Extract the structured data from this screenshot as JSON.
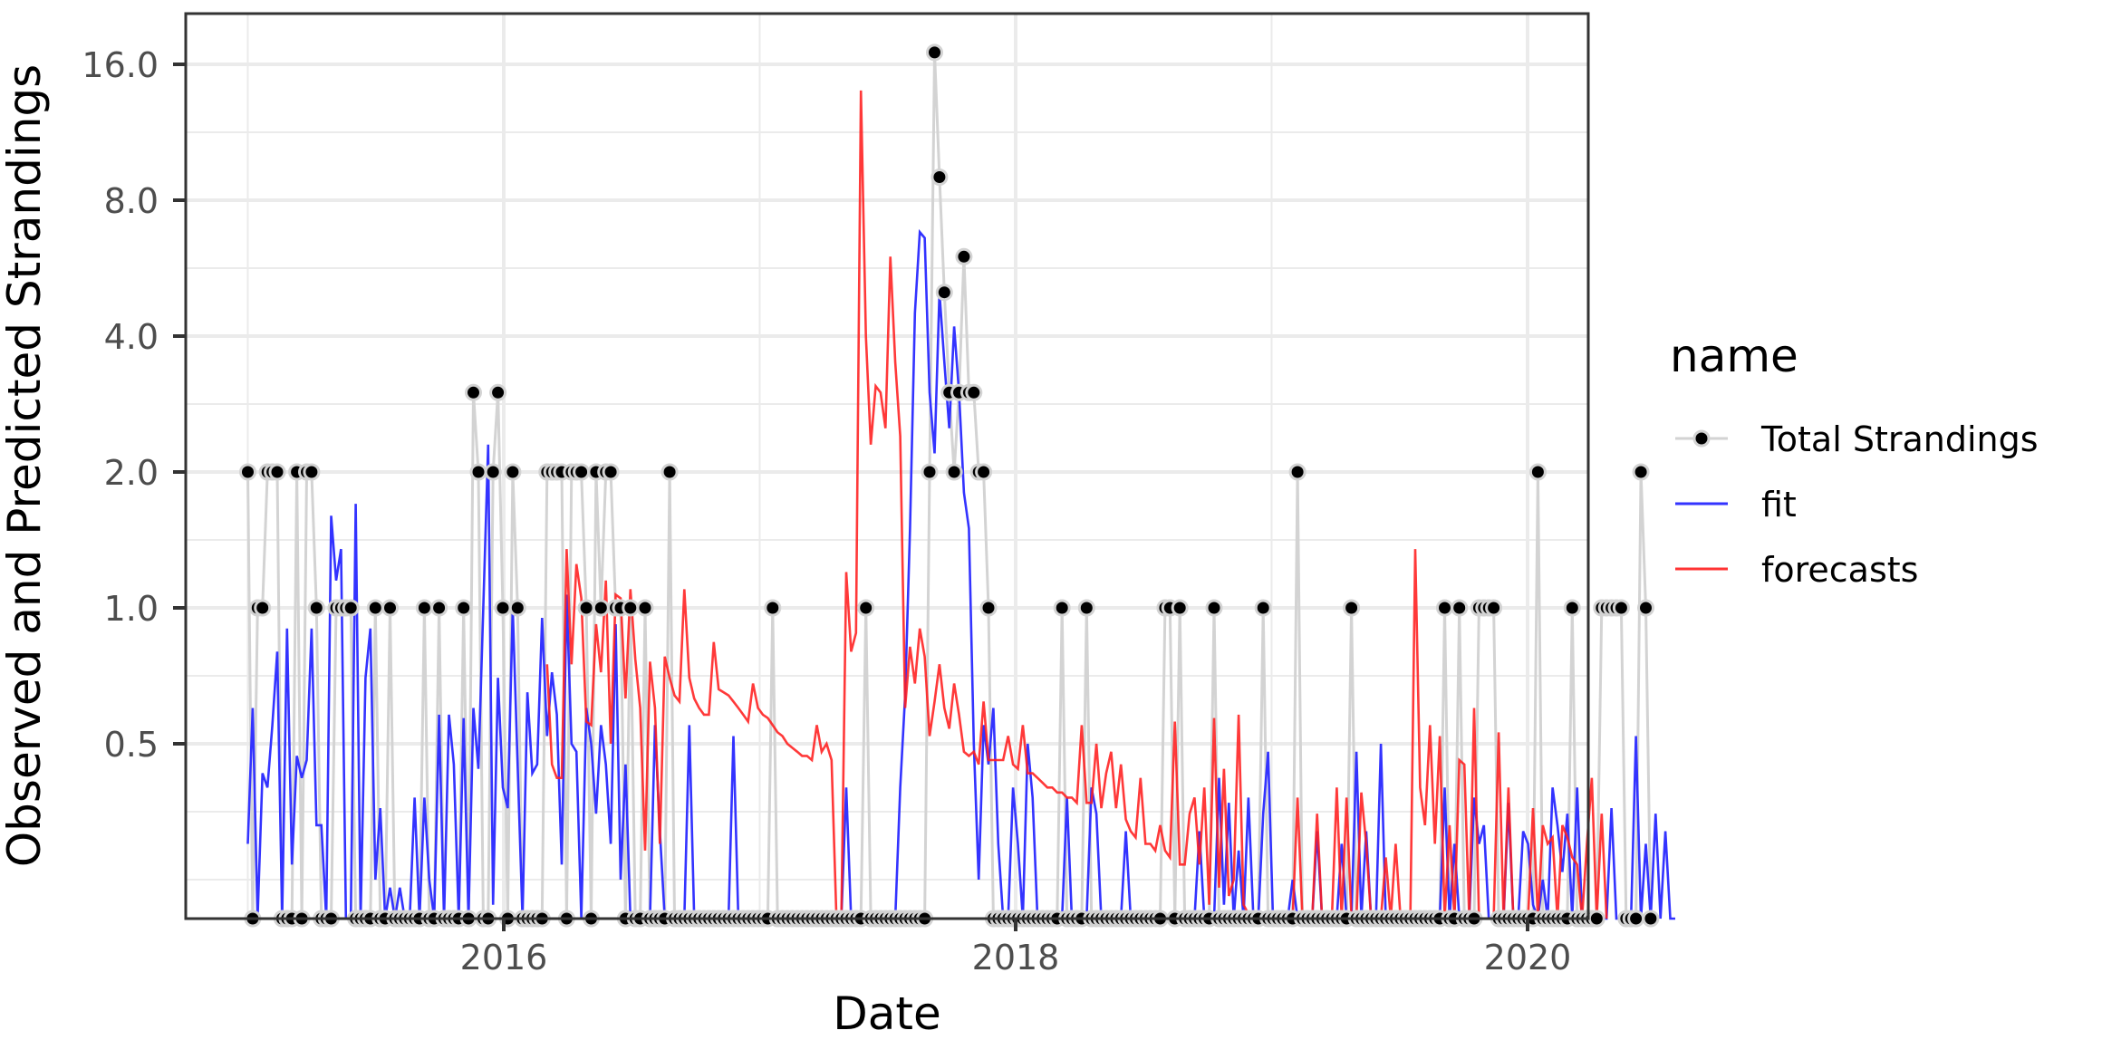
{
  "chart_data": {
    "type": "line",
    "title": "",
    "xlabel": "Date",
    "ylabel": "Observed and Predicted Strandings",
    "x_axis": {
      "type": "date",
      "range": [
        "2014-11-20",
        "2020-02-10"
      ],
      "ticks": [
        2016,
        2018,
        2020
      ],
      "tick_labels": [
        "2016",
        "2018",
        "2020"
      ]
    },
    "y_axis": {
      "scale": "log2",
      "ticks": [
        0.5,
        1.0,
        2.0,
        4.0,
        8.0,
        16.0
      ],
      "tick_labels": [
        "0.5",
        "1.0",
        "2.0",
        "4.0",
        "8.0",
        "16.0"
      ],
      "zero_values_drawn_at_panel_bottom": true
    },
    "grid": true,
    "legend": {
      "title": "name",
      "position": "right",
      "entries": [
        {
          "label": "Total Strandings",
          "style": "line+point",
          "line_color": "#d3d3d3",
          "point_color": "#000000"
        },
        {
          "label": "fit",
          "style": "line",
          "color": "#3333ff"
        },
        {
          "label": "forecasts",
          "style": "line",
          "color": "#ff3333"
        }
      ]
    },
    "frequency": "weekly",
    "start": "2015-01-01",
    "series": [
      {
        "name": "Total Strandings",
        "start_week": 0,
        "values": [
          2,
          0,
          1,
          1,
          2,
          2,
          2,
          0,
          0,
          0,
          2,
          0,
          2,
          2,
          1,
          0,
          0,
          0,
          1,
          1,
          1,
          1,
          0,
          0,
          0,
          0,
          1,
          0,
          0,
          1,
          0,
          0,
          0,
          0,
          0,
          0,
          1,
          0,
          0,
          1,
          0,
          0,
          0,
          0,
          1,
          0,
          3,
          2,
          0,
          0,
          2,
          3,
          1,
          0,
          2,
          1,
          0,
          0,
          0,
          0,
          0,
          2,
          2,
          2,
          2,
          0,
          2,
          2,
          2,
          1,
          0,
          2,
          1,
          2,
          2,
          1,
          1,
          0,
          1,
          0,
          0,
          1,
          0,
          0,
          0,
          0,
          2,
          0,
          0,
          0,
          0,
          0,
          0,
          0,
          0,
          0,
          0,
          0,
          0,
          0,
          0,
          0,
          0,
          0,
          0,
          0,
          0,
          1,
          0,
          0,
          0,
          0,
          0,
          0,
          0,
          0,
          0,
          0,
          0,
          0,
          0,
          0,
          0,
          0,
          0,
          0,
          1,
          0,
          0,
          0,
          0,
          0,
          0,
          0,
          0,
          0,
          0,
          0,
          0,
          2,
          17,
          9,
          5,
          3,
          2,
          3,
          6,
          3,
          3,
          2,
          2,
          1,
          0,
          0,
          0,
          0,
          0,
          0,
          0,
          0,
          0,
          0,
          0,
          0,
          0,
          0,
          1,
          0,
          0,
          0,
          0,
          1,
          0,
          0,
          0,
          0,
          0,
          0,
          0,
          0,
          0,
          0,
          0,
          0,
          0,
          0,
          0,
          1,
          1,
          0,
          1,
          0,
          0,
          0,
          0,
          0,
          0,
          1,
          0,
          0,
          0,
          0,
          0,
          0,
          0,
          0,
          0,
          1,
          0,
          0,
          0,
          0,
          0,
          0,
          2,
          0,
          0,
          0,
          0,
          0,
          0,
          0,
          0,
          0,
          0,
          1,
          0,
          0,
          0,
          0,
          0,
          0,
          0,
          0,
          0,
          0,
          0,
          0,
          0,
          0,
          0,
          0,
          0,
          0,
          1,
          0,
          0,
          1,
          0,
          0,
          0,
          1,
          1,
          1,
          1,
          0,
          0,
          0,
          0,
          0,
          0,
          0,
          0,
          2,
          0,
          0,
          0,
          0,
          0,
          0,
          1,
          0,
          0,
          0,
          0,
          0,
          1,
          1,
          1,
          1,
          1,
          0,
          0,
          0,
          2,
          1,
          0
        ]
      },
      {
        "name": "fit",
        "start_week": 0,
        "values": [
          0.3,
          0.6,
          0.2,
          0.43,
          0.4,
          0.55,
          0.8,
          0.1,
          0.9,
          0.27,
          0.47,
          0.42,
          0.46,
          0.9,
          0.33,
          0.33,
          0.12,
          1.6,
          1.15,
          1.35,
          0.18,
          0.17,
          1.7,
          0.12,
          0.7,
          0.9,
          0.25,
          0.36,
          0.09,
          0.24,
          0.15,
          0.24,
          0.17,
          0.17,
          0.38,
          0.15,
          0.38,
          0.25,
          0.15,
          0.58,
          0.15,
          0.58,
          0.45,
          0.13,
          0.57,
          0.15,
          0.6,
          0.44,
          1.0,
          2.3,
          0.22,
          0.7,
          0.4,
          0.36,
          1.0,
          0.45,
          0.13,
          0.65,
          0.43,
          0.45,
          0.95,
          0.52,
          0.72,
          0.58,
          0.27,
          1.07,
          0.5,
          0.48,
          0.11,
          0.6,
          0.5,
          0.35,
          0.55,
          0.45,
          0.3,
          0.92,
          0.25,
          0.45,
          0.18,
          0.19,
          0.19,
          0.15,
          0.14,
          0.55,
          0.32,
          0.17,
          0.15,
          0.15,
          0.15,
          0.15,
          0.55,
          0.16,
          0.16,
          0.16,
          0.16,
          0.16,
          0.16,
          0.16,
          0.16,
          0.52,
          0.17,
          0.17,
          0.17,
          0.17,
          0.17,
          0.16,
          0.17,
          0.17,
          0.17,
          0.17,
          0.17,
          0.16,
          0.17,
          0.17,
          0.17,
          0.17,
          0.17,
          0.17,
          0.17,
          0.17,
          0.17,
          0.17,
          0.4,
          0.17,
          0.17,
          0.17,
          0.17,
          0.17,
          0.16,
          0.17,
          0.17,
          0.17,
          0.2,
          0.4,
          0.64,
          1.5,
          4.5,
          6.8,
          6.6,
          3.0,
          2.2,
          5.0,
          3.5,
          2.5,
          4.2,
          3.0,
          1.8,
          1.5,
          0.5,
          0.25,
          0.55,
          0.45,
          0.6,
          0.3,
          0.18,
          0.15,
          0.4,
          0.3,
          0.18,
          0.5,
          0.38,
          0.2,
          0.2,
          0.15,
          0.15,
          0.17,
          0.17,
          0.38,
          0.16,
          0.16,
          0.17,
          0.17,
          0.4,
          0.35,
          0.16,
          0.17,
          0.17,
          0.17,
          0.17,
          0.32,
          0.17,
          0.16,
          0.17,
          0.17,
          0.17,
          0.17,
          0.17,
          0.16,
          0.17,
          0.17,
          0.17,
          0.17,
          0.17,
          0.17,
          0.32,
          0.17,
          0.18,
          0.17,
          0.42,
          0.22,
          0.37,
          0.17,
          0.29,
          0.15,
          0.38,
          0.18,
          0.2,
          0.35,
          0.48,
          0.17,
          0.15,
          0.17,
          0.16,
          0.25,
          0.15,
          0.15,
          0.17,
          0.17,
          0.32,
          0.16,
          0.16,
          0.17,
          0.17,
          0.3,
          0.16,
          0.17,
          0.48,
          0.16,
          0.32,
          0.16,
          0.18,
          0.5,
          0.15,
          0.17,
          0.17,
          0.17,
          0.17,
          0.16,
          0.17,
          0.16,
          0.17,
          0.17,
          0.17,
          0.17,
          0.4,
          0.17,
          0.3,
          0.15,
          0.17,
          0.17,
          0.38,
          0.3,
          0.33,
          0.17,
          0.16,
          0.17,
          0.18,
          0.37,
          0.16,
          0.16,
          0.32,
          0.3,
          0.22,
          0.16,
          0.25,
          0.16,
          0.4,
          0.33,
          0.26,
          0.35,
          0.15,
          0.4,
          0.17,
          0.18,
          0.16,
          0.17,
          0.17,
          0.16,
          0.36,
          0.17,
          0.18,
          0.17,
          0.15,
          0.52,
          0.15,
          0.3,
          0.15,
          0.35,
          0.15,
          0.32,
          0.17,
          0.16
        ]
      },
      {
        "name": "forecasts",
        "start_week": 61,
        "values": [
          0.75,
          0.45,
          0.42,
          0.42,
          1.35,
          0.75,
          1.25,
          1.05,
          0.56,
          0.55,
          0.92,
          0.72,
          1.15,
          0.5,
          1.07,
          1.05,
          0.63,
          1.1,
          0.77,
          0.6,
          0.29,
          0.76,
          0.6,
          0.3,
          0.78,
          0.7,
          0.64,
          0.62,
          1.1,
          0.7,
          0.63,
          0.6,
          0.58,
          0.58,
          0.84,
          0.66,
          0.65,
          0.64,
          0.62,
          0.6,
          0.58,
          0.56,
          0.68,
          0.6,
          0.58,
          0.57,
          0.55,
          0.53,
          0.52,
          0.5,
          0.49,
          0.48,
          0.47,
          0.47,
          0.46,
          0.55,
          0.48,
          0.5,
          0.46,
          0.0,
          0.0,
          1.2,
          0.8,
          0.88,
          14.0,
          4.0,
          2.3,
          3.1,
          3.0,
          2.5,
          6.0,
          3.5,
          2.4,
          0.6,
          0.82,
          0.68,
          0.9,
          0.78,
          0.52,
          0.62,
          0.75,
          0.6,
          0.54,
          0.68,
          0.58,
          0.48,
          0.47,
          0.48,
          0.45,
          0.62,
          0.46,
          0.46,
          0.46,
          0.46,
          0.52,
          0.45,
          0.44,
          0.55,
          0.43,
          0.43,
          0.42,
          0.41,
          0.4,
          0.4,
          0.39,
          0.39,
          0.38,
          0.38,
          0.37,
          0.55,
          0.37,
          0.37,
          0.5,
          0.36,
          0.43,
          0.48,
          0.36,
          0.45,
          0.34,
          0.32,
          0.31,
          0.42,
          0.3,
          0.3,
          0.29,
          0.33,
          0.29,
          0.28,
          0.56,
          0.27,
          0.27,
          0.35,
          0.38,
          0.27,
          0.4,
          0.22,
          0.57,
          0.24,
          0.44,
          0.23,
          0.25,
          0.58,
          0.22,
          0.21,
          0.21,
          0.21,
          0.2,
          0.2,
          0.2,
          0.19,
          0.2,
          0.19,
          0.19,
          0.38,
          0.19,
          0.18,
          0.18,
          0.35,
          0.18,
          0.16,
          0.18,
          0.4,
          0.17,
          0.38,
          0.17,
          0.18,
          0.39,
          0.3,
          0.17,
          0.17,
          0.17,
          0.28,
          0.18,
          0.3,
          0.18,
          0.18,
          0.17,
          1.35,
          0.4,
          0.33,
          0.55,
          0.3,
          0.52,
          0.2,
          0.33,
          0.16,
          0.46,
          0.45,
          0.16,
          0.6,
          0.15,
          0.18,
          0.17,
          0.17,
          0.53,
          0.15,
          0.4,
          0.17,
          0.17,
          0.17,
          0.16,
          0.36,
          0.16,
          0.33,
          0.3,
          0.31,
          0.15,
          0.33,
          0.31,
          0.28,
          0.27,
          0.16,
          0.3,
          0.42,
          0.15,
          0.35,
          0.17
        ]
      }
    ]
  }
}
